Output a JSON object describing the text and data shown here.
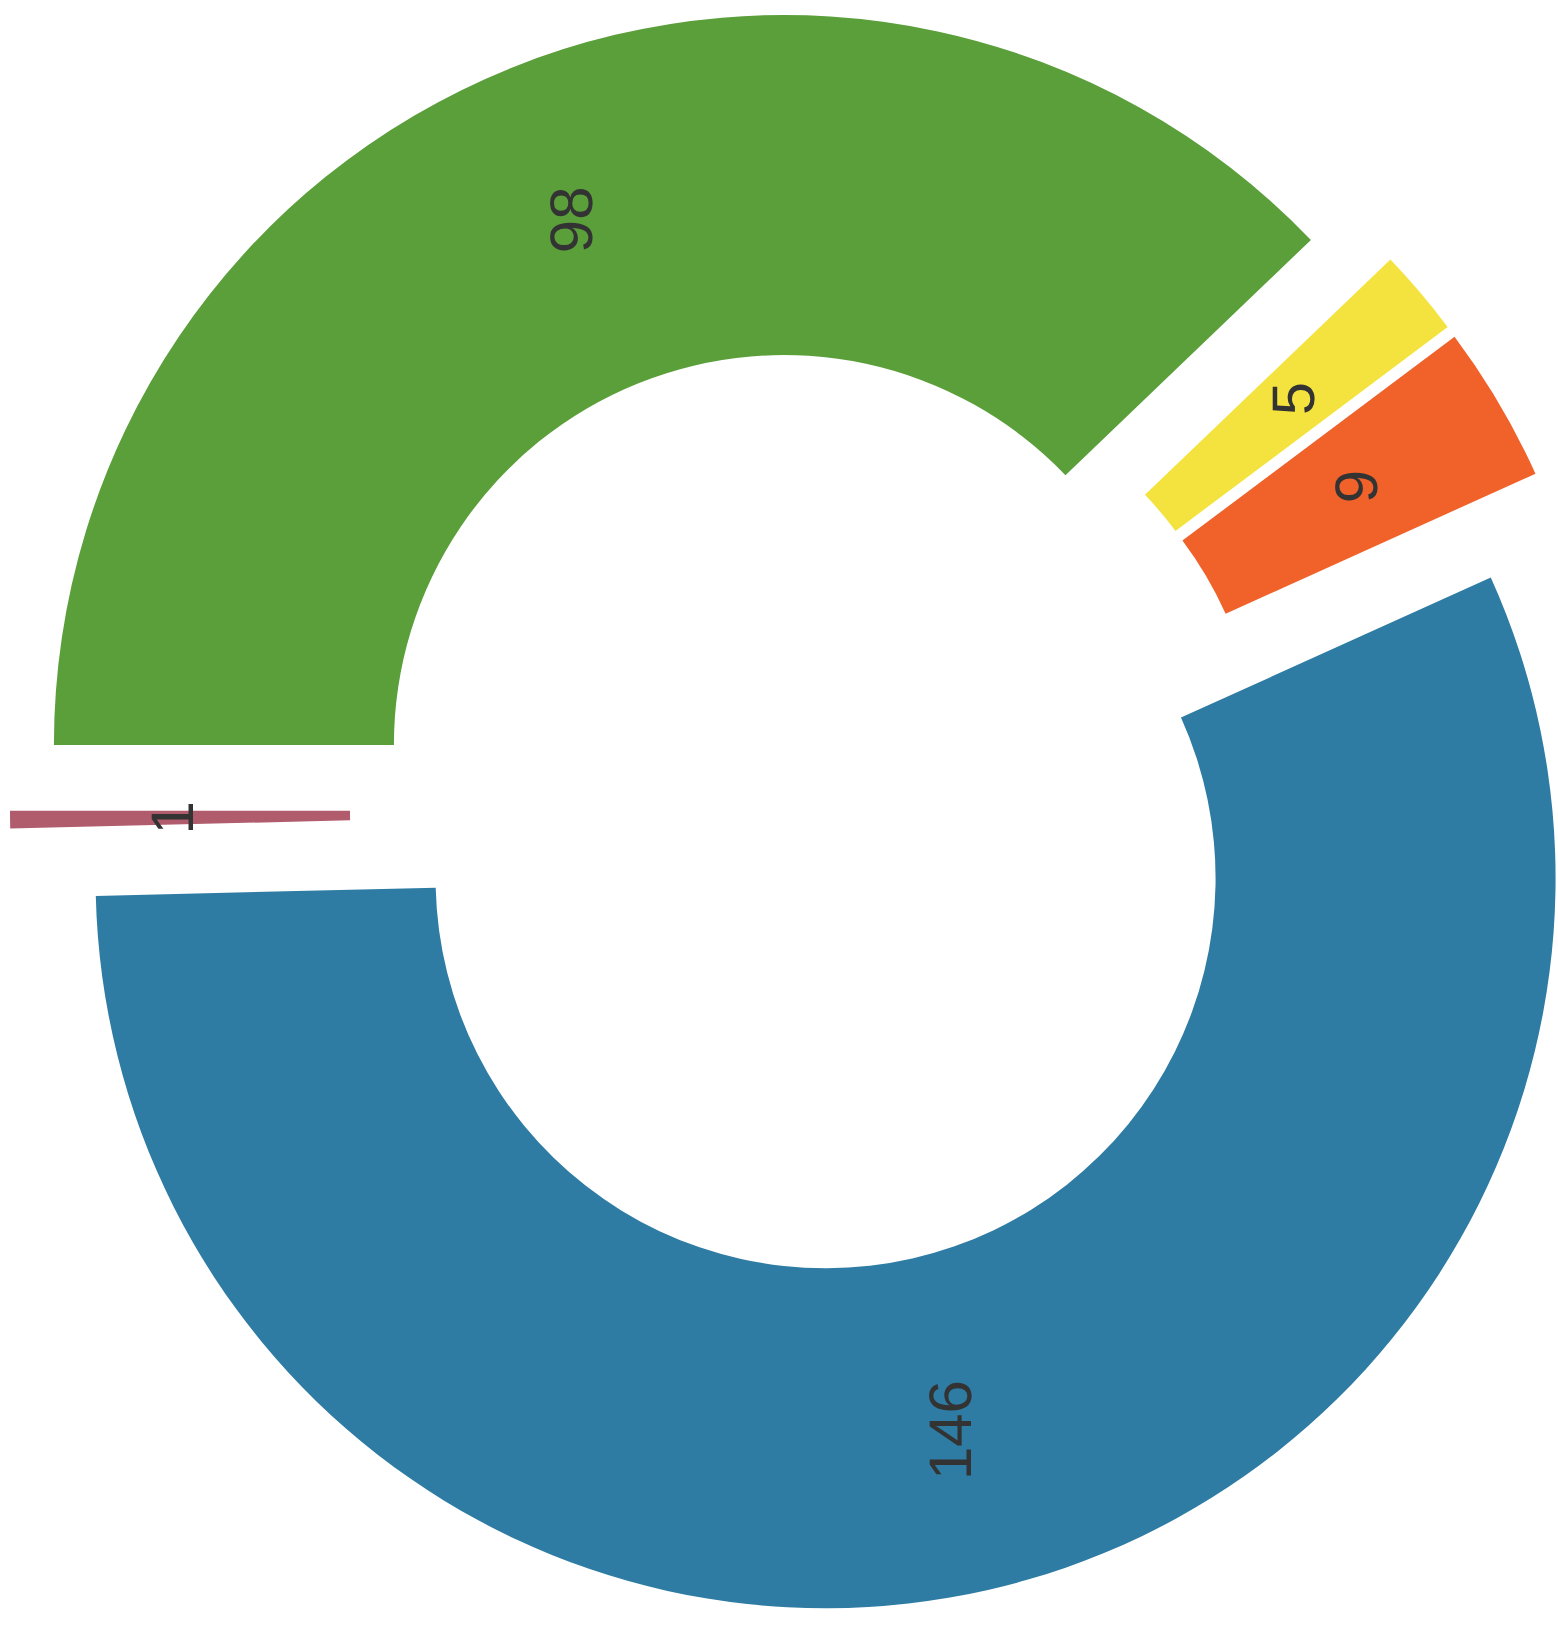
{
  "chart_data": {
    "type": "donut",
    "categories": [
      null,
      null,
      null,
      null,
      null
    ],
    "values": [
      98,
      5,
      9,
      146,
      1
    ],
    "colors": [
      "#5b9f3b",
      "#f4e33e",
      "#f0622a",
      "#2e7ca3",
      "#b15c6c"
    ],
    "data_labels": true
  }
}
